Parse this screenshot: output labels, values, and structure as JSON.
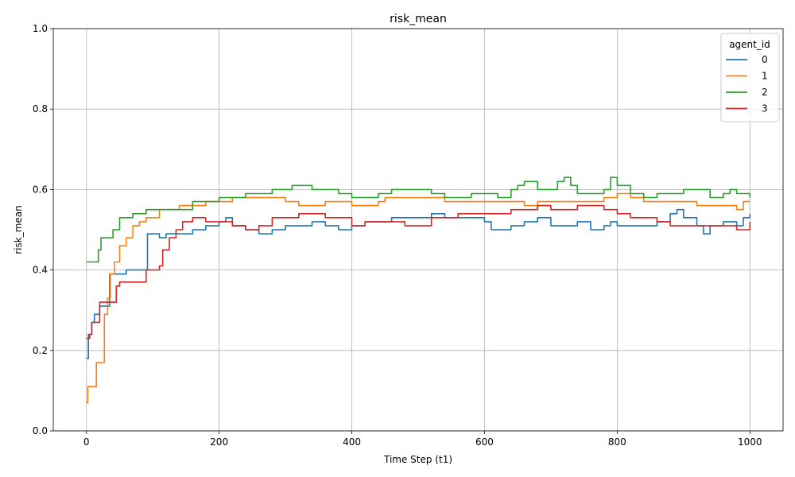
{
  "chart_data": {
    "type": "line",
    "title": "risk_mean",
    "xlabel": "Time Step (t1)",
    "ylabel": "risk_mean",
    "xlim": [
      -50,
      1050
    ],
    "ylim": [
      0.0,
      1.0
    ],
    "xticks": [
      0,
      200,
      400,
      600,
      800,
      1000
    ],
    "xtick_labels": [
      "0",
      "200",
      "400",
      "600",
      "800",
      "1000"
    ],
    "yticks": [
      0.0,
      0.2,
      0.4,
      0.6,
      0.8,
      1.0
    ],
    "ytick_labels": [
      "0.0",
      "0.2",
      "0.4",
      "0.6",
      "0.8",
      "1.0"
    ],
    "grid": true,
    "legend": {
      "title": "agent_id",
      "position": "top-right"
    },
    "series": [
      {
        "name": "0",
        "color": "#1f77b4",
        "points": [
          [
            0,
            0.18
          ],
          [
            3,
            0.24
          ],
          [
            8,
            0.27
          ],
          [
            12,
            0.29
          ],
          [
            20,
            0.31
          ],
          [
            30,
            0.31
          ],
          [
            35,
            0.39
          ],
          [
            45,
            0.39
          ],
          [
            60,
            0.4
          ],
          [
            70,
            0.4
          ],
          [
            80,
            0.4
          ],
          [
            88,
            0.4
          ],
          [
            92,
            0.49
          ],
          [
            100,
            0.49
          ],
          [
            105,
            0.49
          ],
          [
            110,
            0.48
          ],
          [
            120,
            0.49
          ],
          [
            130,
            0.49
          ],
          [
            140,
            0.49
          ],
          [
            160,
            0.5
          ],
          [
            180,
            0.51
          ],
          [
            200,
            0.52
          ],
          [
            210,
            0.53
          ],
          [
            220,
            0.51
          ],
          [
            240,
            0.5
          ],
          [
            260,
            0.49
          ],
          [
            280,
            0.5
          ],
          [
            300,
            0.51
          ],
          [
            320,
            0.51
          ],
          [
            340,
            0.52
          ],
          [
            360,
            0.51
          ],
          [
            380,
            0.5
          ],
          [
            400,
            0.51
          ],
          [
            420,
            0.52
          ],
          [
            440,
            0.52
          ],
          [
            460,
            0.53
          ],
          [
            480,
            0.53
          ],
          [
            500,
            0.53
          ],
          [
            520,
            0.54
          ],
          [
            540,
            0.53
          ],
          [
            560,
            0.53
          ],
          [
            580,
            0.53
          ],
          [
            600,
            0.52
          ],
          [
            610,
            0.5
          ],
          [
            640,
            0.51
          ],
          [
            660,
            0.52
          ],
          [
            680,
            0.53
          ],
          [
            700,
            0.51
          ],
          [
            720,
            0.51
          ],
          [
            740,
            0.52
          ],
          [
            760,
            0.5
          ],
          [
            780,
            0.51
          ],
          [
            790,
            0.52
          ],
          [
            800,
            0.51
          ],
          [
            820,
            0.51
          ],
          [
            840,
            0.51
          ],
          [
            860,
            0.52
          ],
          [
            880,
            0.54
          ],
          [
            890,
            0.55
          ],
          [
            900,
            0.53
          ],
          [
            920,
            0.51
          ],
          [
            930,
            0.49
          ],
          [
            940,
            0.51
          ],
          [
            960,
            0.52
          ],
          [
            980,
            0.51
          ],
          [
            990,
            0.53
          ],
          [
            1000,
            0.54
          ]
        ]
      },
      {
        "name": "1",
        "color": "#ff7f0e",
        "points": [
          [
            0,
            0.07
          ],
          [
            2,
            0.11
          ],
          [
            10,
            0.11
          ],
          [
            15,
            0.17
          ],
          [
            24,
            0.17
          ],
          [
            27,
            0.29
          ],
          [
            32,
            0.33
          ],
          [
            36,
            0.39
          ],
          [
            42,
            0.42
          ],
          [
            50,
            0.46
          ],
          [
            60,
            0.48
          ],
          [
            70,
            0.51
          ],
          [
            80,
            0.52
          ],
          [
            90,
            0.53
          ],
          [
            100,
            0.53
          ],
          [
            110,
            0.55
          ],
          [
            120,
            0.55
          ],
          [
            140,
            0.56
          ],
          [
            160,
            0.56
          ],
          [
            180,
            0.57
          ],
          [
            200,
            0.57
          ],
          [
            220,
            0.58
          ],
          [
            240,
            0.58
          ],
          [
            260,
            0.58
          ],
          [
            280,
            0.58
          ],
          [
            300,
            0.57
          ],
          [
            320,
            0.56
          ],
          [
            340,
            0.56
          ],
          [
            360,
            0.57
          ],
          [
            380,
            0.57
          ],
          [
            400,
            0.56
          ],
          [
            420,
            0.56
          ],
          [
            440,
            0.57
          ],
          [
            450,
            0.58
          ],
          [
            460,
            0.58
          ],
          [
            480,
            0.58
          ],
          [
            500,
            0.58
          ],
          [
            520,
            0.58
          ],
          [
            540,
            0.57
          ],
          [
            560,
            0.57
          ],
          [
            580,
            0.57
          ],
          [
            600,
            0.57
          ],
          [
            620,
            0.57
          ],
          [
            640,
            0.57
          ],
          [
            660,
            0.56
          ],
          [
            680,
            0.57
          ],
          [
            700,
            0.57
          ],
          [
            720,
            0.57
          ],
          [
            740,
            0.57
          ],
          [
            760,
            0.57
          ],
          [
            780,
            0.58
          ],
          [
            800,
            0.59
          ],
          [
            820,
            0.58
          ],
          [
            840,
            0.57
          ],
          [
            860,
            0.57
          ],
          [
            880,
            0.57
          ],
          [
            900,
            0.57
          ],
          [
            920,
            0.56
          ],
          [
            940,
            0.56
          ],
          [
            960,
            0.56
          ],
          [
            980,
            0.55
          ],
          [
            990,
            0.57
          ],
          [
            1000,
            0.57
          ]
        ]
      },
      {
        "name": "2",
        "color": "#2ca02c",
        "points": [
          [
            0,
            0.42
          ],
          [
            15,
            0.42
          ],
          [
            18,
            0.45
          ],
          [
            22,
            0.48
          ],
          [
            30,
            0.48
          ],
          [
            40,
            0.5
          ],
          [
            50,
            0.53
          ],
          [
            60,
            0.53
          ],
          [
            70,
            0.54
          ],
          [
            80,
            0.54
          ],
          [
            90,
            0.55
          ],
          [
            100,
            0.55
          ],
          [
            120,
            0.55
          ],
          [
            140,
            0.55
          ],
          [
            160,
            0.57
          ],
          [
            180,
            0.57
          ],
          [
            200,
            0.58
          ],
          [
            220,
            0.58
          ],
          [
            240,
            0.59
          ],
          [
            260,
            0.59
          ],
          [
            280,
            0.6
          ],
          [
            300,
            0.6
          ],
          [
            310,
            0.61
          ],
          [
            320,
            0.61
          ],
          [
            340,
            0.6
          ],
          [
            360,
            0.6
          ],
          [
            380,
            0.59
          ],
          [
            400,
            0.58
          ],
          [
            420,
            0.58
          ],
          [
            440,
            0.59
          ],
          [
            460,
            0.6
          ],
          [
            480,
            0.6
          ],
          [
            500,
            0.6
          ],
          [
            520,
            0.59
          ],
          [
            540,
            0.58
          ],
          [
            560,
            0.58
          ],
          [
            580,
            0.59
          ],
          [
            600,
            0.59
          ],
          [
            620,
            0.58
          ],
          [
            640,
            0.6
          ],
          [
            650,
            0.61
          ],
          [
            660,
            0.62
          ],
          [
            680,
            0.6
          ],
          [
            700,
            0.6
          ],
          [
            710,
            0.62
          ],
          [
            720,
            0.63
          ],
          [
            730,
            0.61
          ],
          [
            740,
            0.59
          ],
          [
            760,
            0.59
          ],
          [
            780,
            0.6
          ],
          [
            790,
            0.63
          ],
          [
            800,
            0.61
          ],
          [
            820,
            0.59
          ],
          [
            840,
            0.58
          ],
          [
            860,
            0.59
          ],
          [
            880,
            0.59
          ],
          [
            900,
            0.6
          ],
          [
            920,
            0.6
          ],
          [
            940,
            0.58
          ],
          [
            960,
            0.59
          ],
          [
            970,
            0.6
          ],
          [
            980,
            0.59
          ],
          [
            1000,
            0.58
          ]
        ]
      },
      {
        "name": "3",
        "color": "#d62728",
        "points": [
          [
            0,
            0.23
          ],
          [
            5,
            0.24
          ],
          [
            8,
            0.27
          ],
          [
            15,
            0.27
          ],
          [
            20,
            0.32
          ],
          [
            30,
            0.32
          ],
          [
            40,
            0.32
          ],
          [
            45,
            0.36
          ],
          [
            50,
            0.37
          ],
          [
            60,
            0.37
          ],
          [
            70,
            0.37
          ],
          [
            85,
            0.37
          ],
          [
            90,
            0.4
          ],
          [
            100,
            0.4
          ],
          [
            110,
            0.41
          ],
          [
            115,
            0.45
          ],
          [
            125,
            0.48
          ],
          [
            135,
            0.5
          ],
          [
            145,
            0.52
          ],
          [
            160,
            0.53
          ],
          [
            180,
            0.52
          ],
          [
            200,
            0.52
          ],
          [
            220,
            0.51
          ],
          [
            240,
            0.5
          ],
          [
            260,
            0.51
          ],
          [
            280,
            0.53
          ],
          [
            300,
            0.53
          ],
          [
            320,
            0.54
          ],
          [
            340,
            0.54
          ],
          [
            360,
            0.53
          ],
          [
            380,
            0.53
          ],
          [
            400,
            0.51
          ],
          [
            420,
            0.52
          ],
          [
            440,
            0.52
          ],
          [
            460,
            0.52
          ],
          [
            480,
            0.51
          ],
          [
            500,
            0.51
          ],
          [
            520,
            0.53
          ],
          [
            540,
            0.53
          ],
          [
            560,
            0.54
          ],
          [
            580,
            0.54
          ],
          [
            600,
            0.54
          ],
          [
            620,
            0.54
          ],
          [
            640,
            0.55
          ],
          [
            660,
            0.55
          ],
          [
            680,
            0.56
          ],
          [
            700,
            0.55
          ],
          [
            720,
            0.55
          ],
          [
            740,
            0.56
          ],
          [
            760,
            0.56
          ],
          [
            780,
            0.55
          ],
          [
            800,
            0.54
          ],
          [
            820,
            0.53
          ],
          [
            840,
            0.53
          ],
          [
            860,
            0.52
          ],
          [
            880,
            0.51
          ],
          [
            900,
            0.51
          ],
          [
            920,
            0.51
          ],
          [
            940,
            0.51
          ],
          [
            960,
            0.51
          ],
          [
            980,
            0.5
          ],
          [
            1000,
            0.52
          ]
        ]
      }
    ]
  }
}
